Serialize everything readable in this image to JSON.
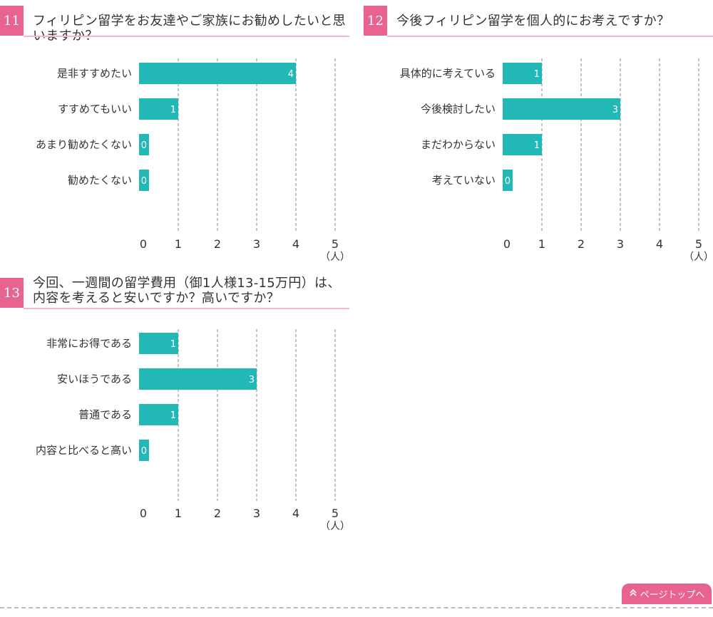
{
  "questions": [
    {
      "number": "11",
      "title": "フィリピン留学をお友達やご家族にお勧めしたいと思いますか？"
    },
    {
      "number": "12",
      "title": "今後フィリピン留学を個人的にお考えですか？"
    },
    {
      "number": "13",
      "title": "今回、一週間の留学費用（御1人様13-15万円）は、\n内容を考えると安いですか？高いですか？"
    }
  ],
  "chart_data": [
    {
      "type": "bar",
      "orientation": "horizontal",
      "categories": [
        "是非すすめたい",
        "すすめてもいい",
        "あまり勧めたくない",
        "勧めたくない"
      ],
      "values": [
        4,
        1,
        0,
        0
      ],
      "xlim": [
        0,
        5
      ],
      "ticks": [
        "0",
        "1",
        "2",
        "3",
        "4",
        "5"
      ],
      "unit": "（人）",
      "grid": true,
      "color": "#21b8b6"
    },
    {
      "type": "bar",
      "orientation": "horizontal",
      "categories": [
        "具体的に考えている",
        "今後検討したい",
        "まだわからない",
        "考えていない"
      ],
      "values": [
        1,
        3,
        1,
        0
      ],
      "xlim": [
        0,
        5
      ],
      "ticks": [
        "0",
        "1",
        "2",
        "3",
        "4",
        "5"
      ],
      "unit": "（人）",
      "grid": true,
      "color": "#21b8b6"
    },
    {
      "type": "bar",
      "orientation": "horizontal",
      "categories": [
        "非常にお得である",
        "安いほうである",
        "普通である",
        "内容と比べると高い"
      ],
      "values": [
        1,
        3,
        1,
        0
      ],
      "xlim": [
        0,
        5
      ],
      "ticks": [
        "0",
        "1",
        "2",
        "3",
        "4",
        "5"
      ],
      "unit": "（人）",
      "grid": true,
      "color": "#21b8b6"
    }
  ],
  "page_top": {
    "icon": "double-chevron-up-icon",
    "label": "ページトップへ"
  },
  "colors": {
    "accent": "#e8638e",
    "bar": "#21b8b6",
    "rule": "#f2b8c9"
  }
}
